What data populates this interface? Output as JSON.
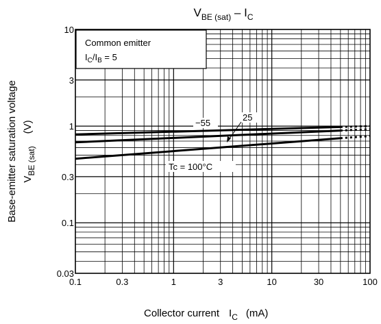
{
  "chart_data": {
    "type": "line",
    "title": {
      "main": "V",
      "sub": "BE (sat)",
      "sep": " – ",
      "main2": "I",
      "sub2": "C"
    },
    "xaxis": {
      "scale": "log",
      "range": [
        0.1,
        100
      ],
      "ticks": [
        0.1,
        0.3,
        1,
        3,
        10,
        30,
        100
      ],
      "tick_labels": [
        "0.1",
        "0.3",
        "1",
        "3",
        "10",
        "30",
        "100"
      ],
      "label": {
        "text": "Collector current",
        "sym": "I",
        "sub": "C",
        "unit": "(mA)"
      }
    },
    "yaxis": {
      "scale": "log",
      "range": [
        0.03,
        10
      ],
      "ticks": [
        0.03,
        0.1,
        0.3,
        1,
        3,
        10
      ],
      "tick_labels": [
        "0.03",
        "0.1",
        "0.3",
        "1",
        "3",
        "10"
      ],
      "label_line1": "Base-emitter saturation voltage",
      "label_line2": {
        "sym": "V",
        "sub": "BE (sat)",
        "unit": "(V)"
      }
    },
    "grid": true,
    "legend_box": {
      "line1": "Common emitter",
      "line2": {
        "a": "I",
        "a_sub": "C",
        "slash": "/I",
        "b_sub": "B",
        "rest": " = 5"
      }
    },
    "series": [
      {
        "name": "−55",
        "x": [
          0.1,
          50
        ],
        "y": [
          0.82,
          0.98
        ],
        "dashed_to": [
          100,
          1.0
        ]
      },
      {
        "name": "25",
        "x": [
          0.1,
          50
        ],
        "y": [
          0.68,
          0.9
        ],
        "dashed_to": [
          100,
          0.93
        ]
      },
      {
        "name": "Tc = 100°C",
        "x": [
          0.1,
          50
        ],
        "y": [
          0.46,
          0.75
        ],
        "dashed_to": [
          100,
          0.79
        ]
      }
    ],
    "annotations": [
      "−55",
      "25",
      "Tc = 100°C"
    ]
  }
}
